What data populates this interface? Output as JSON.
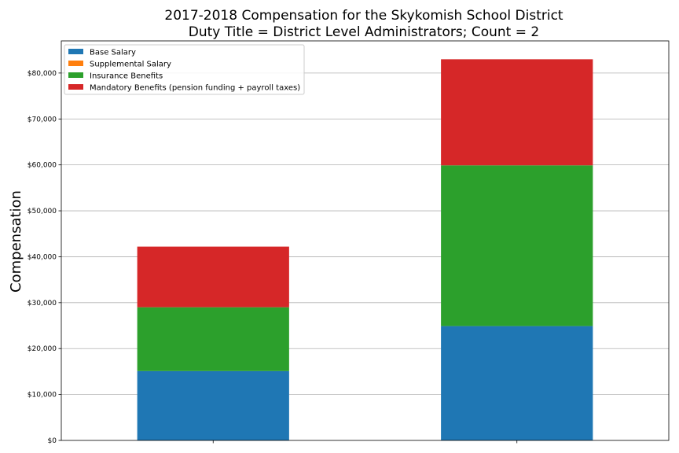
{
  "chart_data": {
    "type": "bar",
    "stacked": true,
    "title_lines": [
      "2017-2018 Compensation for the Skykomish School District",
      "Duty Title = District Level Administrators; Count = 2"
    ],
    "xlabel": "",
    "ylabel": "Compensation",
    "categories": [
      "",
      ""
    ],
    "ylim": [
      0,
      87000
    ],
    "yticks": [
      0,
      10000,
      20000,
      30000,
      40000,
      50000,
      60000,
      70000,
      80000
    ],
    "ytick_labels": [
      "$0",
      "$10,000",
      "$20,000",
      "$30,000",
      "$40,000",
      "$50,000",
      "$60,000",
      "$70,000",
      "$80,000"
    ],
    "grid": "horizontal",
    "legend_position": "top-left",
    "series": [
      {
        "name": "Base Salary",
        "color": "#1f77b4",
        "values": [
          15100,
          24900
        ]
      },
      {
        "name": "Supplemental Salary",
        "color": "#ff7f0e",
        "values": [
          0,
          0
        ]
      },
      {
        "name": "Insurance Benefits",
        "color": "#2ca02c",
        "values": [
          13900,
          35000
        ]
      },
      {
        "name": "Mandatory Benefits (pension funding + payroll taxes)",
        "color": "#d62728",
        "values": [
          13200,
          23100
        ]
      }
    ]
  }
}
